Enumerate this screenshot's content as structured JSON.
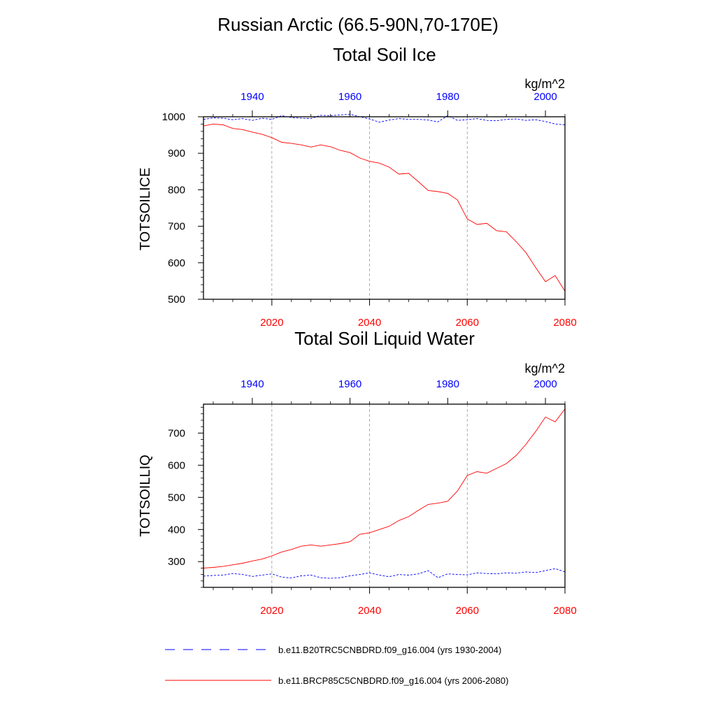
{
  "suptitle": "Russian Arctic (66.5-90N,70-170E)",
  "colors": {
    "control": "#0000ff",
    "future": "#ff0000",
    "axis": "#000000",
    "grid": "#999999"
  },
  "legend": [
    {
      "label": "b.e11.B20TRC5CNBDRD.f09_g16.004 (yrs 1930-2004)",
      "style": "dashed",
      "color": "#0000ff"
    },
    {
      "label": "b.e11.BRCP85C5CNBDRD.f09_g16.004 (yrs 2006-2080)",
      "style": "solid",
      "color": "#ff0000"
    }
  ],
  "chart_data": [
    {
      "type": "line",
      "title": "Total Soil Ice",
      "ylabel": "TOTSOILICE",
      "units": "kg/m^2",
      "ylim": [
        500,
        1000
      ],
      "yticks": [
        500,
        600,
        700,
        800,
        900,
        1000
      ],
      "top_axis": {
        "range": [
          1930,
          2004
        ],
        "ticks": [
          1940,
          1960,
          1980,
          2000
        ],
        "labels": [
          "1940",
          "1960",
          "1980",
          "2000"
        ]
      },
      "bottom_axis": {
        "range": [
          2006,
          2080
        ],
        "ticks": [
          2020,
          2040,
          2060,
          2080
        ],
        "labels": [
          "2020",
          "2040",
          "2060",
          "2080"
        ]
      },
      "series": [
        {
          "name": "control",
          "axis": "top",
          "x": [
            1930,
            1932,
            1934,
            1936,
            1938,
            1940,
            1942,
            1944,
            1946,
            1948,
            1950,
            1952,
            1954,
            1956,
            1958,
            1960,
            1962,
            1964,
            1966,
            1968,
            1970,
            1972,
            1974,
            1976,
            1978,
            1980,
            1982,
            1984,
            1986,
            1988,
            1990,
            1992,
            1994,
            1996,
            1998,
            2000,
            2002,
            2004
          ],
          "y": [
            993,
            997,
            996,
            992,
            995,
            990,
            996,
            993,
            1003,
            998,
            996,
            995,
            1004,
            1003,
            1005,
            1007,
            1000,
            994,
            985,
            991,
            995,
            993,
            993,
            991,
            986,
            1003,
            990,
            992,
            995,
            990,
            989,
            993,
            994,
            990,
            992,
            987,
            980,
            978
          ]
        },
        {
          "name": "future",
          "axis": "bottom",
          "x": [
            2006,
            2008,
            2010,
            2012,
            2014,
            2016,
            2018,
            2020,
            2022,
            2024,
            2026,
            2028,
            2030,
            2032,
            2034,
            2036,
            2038,
            2040,
            2042,
            2044,
            2046,
            2048,
            2050,
            2052,
            2054,
            2056,
            2058,
            2060,
            2062,
            2064,
            2066,
            2068,
            2070,
            2072,
            2074,
            2076,
            2078,
            2080
          ],
          "y": [
            975,
            980,
            978,
            968,
            965,
            958,
            952,
            943,
            930,
            927,
            923,
            917,
            923,
            918,
            908,
            902,
            887,
            878,
            873,
            862,
            843,
            845,
            822,
            798,
            795,
            790,
            772,
            720,
            705,
            708,
            688,
            685,
            658,
            628,
            587,
            548,
            565,
            522
          ]
        }
      ]
    },
    {
      "type": "line",
      "title": "Total Soil Liquid Water",
      "ylabel": "TOTSOILLIQ",
      "units": "kg/m^2",
      "ylim": [
        220,
        790
      ],
      "yticks": [
        300,
        400,
        500,
        600,
        700
      ],
      "top_axis": {
        "range": [
          1930,
          2004
        ],
        "ticks": [
          1940,
          1960,
          1980,
          2000
        ],
        "labels": [
          "1940",
          "1960",
          "1980",
          "2000"
        ]
      },
      "bottom_axis": {
        "range": [
          2006,
          2080
        ],
        "ticks": [
          2020,
          2040,
          2060,
          2080
        ],
        "labels": [
          "2020",
          "2040",
          "2060",
          "2080"
        ]
      },
      "series": [
        {
          "name": "control",
          "axis": "top",
          "x": [
            1930,
            1932,
            1934,
            1936,
            1938,
            1940,
            1942,
            1944,
            1946,
            1948,
            1950,
            1952,
            1954,
            1956,
            1958,
            1960,
            1962,
            1964,
            1966,
            1968,
            1970,
            1972,
            1974,
            1976,
            1978,
            1980,
            1982,
            1984,
            1986,
            1988,
            1990,
            1992,
            1994,
            1996,
            1998,
            2000,
            2002,
            2004
          ],
          "y": [
            255,
            257,
            258,
            263,
            260,
            254,
            258,
            262,
            252,
            249,
            256,
            258,
            250,
            248,
            250,
            256,
            260,
            265,
            258,
            253,
            260,
            258,
            262,
            272,
            250,
            262,
            260,
            259,
            265,
            263,
            262,
            265,
            264,
            268,
            266,
            272,
            278,
            268
          ]
        },
        {
          "name": "future",
          "axis": "bottom",
          "x": [
            2006,
            2008,
            2010,
            2012,
            2014,
            2016,
            2018,
            2020,
            2022,
            2024,
            2026,
            2028,
            2030,
            2032,
            2034,
            2036,
            2038,
            2040,
            2042,
            2044,
            2046,
            2048,
            2050,
            2052,
            2054,
            2056,
            2058,
            2060,
            2062,
            2064,
            2066,
            2068,
            2070,
            2072,
            2074,
            2076,
            2078,
            2080
          ],
          "y": [
            280,
            282,
            285,
            290,
            295,
            302,
            308,
            318,
            330,
            338,
            348,
            352,
            348,
            352,
            356,
            362,
            385,
            390,
            400,
            410,
            428,
            440,
            460,
            478,
            482,
            488,
            520,
            568,
            580,
            575,
            590,
            605,
            630,
            665,
            705,
            750,
            735,
            775
          ]
        }
      ]
    }
  ]
}
